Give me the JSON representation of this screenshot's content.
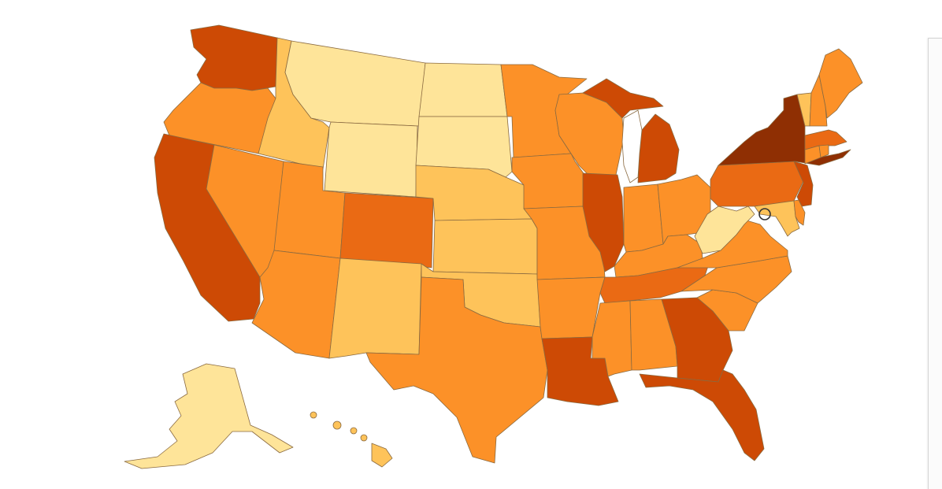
{
  "map": {
    "type": "choropleth",
    "region": "United States",
    "palette": {
      "1": "#fee499",
      "2": "#fec35a",
      "3": "#fc9128",
      "4": "#ea6a14",
      "5": "#cd4a05",
      "6": "#8f2f03"
    },
    "outline_color": "#8a6a40",
    "states": {
      "WA": 5,
      "OR": 3,
      "CA": 5,
      "ID": 2,
      "NV": 3,
      "MT": 1,
      "WY": 1,
      "UT": 3,
      "AZ": 3,
      "CO": 4,
      "NM": 2,
      "ND": 1,
      "SD": 1,
      "NE": 2,
      "KS": 2,
      "OK": 2,
      "TX": 3,
      "MN": 3,
      "IA": 3,
      "MO": 3,
      "AR": 3,
      "LA": 5,
      "WI": 3,
      "IL": 5,
      "MI": 5,
      "IN": 3,
      "OH": 3,
      "KY": 3,
      "TN": 4,
      "MS": 3,
      "AL": 3,
      "GA": 5,
      "FL": 5,
      "SC": 3,
      "NC": 3,
      "VA": 3,
      "WV": 1,
      "PA": 4,
      "NY": 6,
      "NJ": 5,
      "DE": 3,
      "MD": 2,
      "VT": 2,
      "NH": 3,
      "ME": 3,
      "MA": 4,
      "CT": 3,
      "RI": 3,
      "AK": 1,
      "HI": 2
    },
    "dc_marker": true
  }
}
